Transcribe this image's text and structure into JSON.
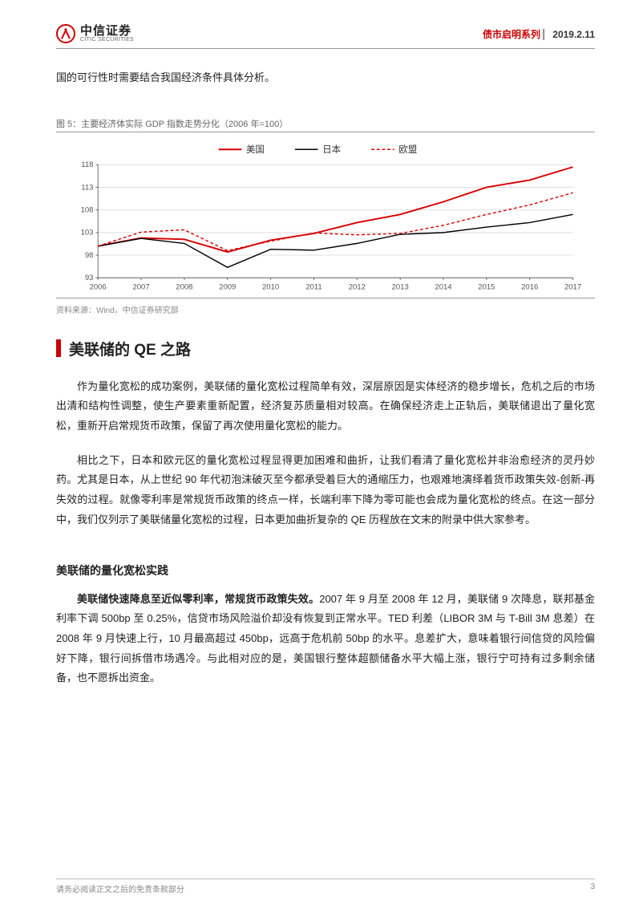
{
  "header": {
    "logo_cn": "中信证券",
    "logo_en": "CITIC SECURITIES",
    "series": "债市启明系列",
    "date": "2019.2.11"
  },
  "intro_line": "国的可行性时需要结合我国经济条件具体分析。",
  "figure": {
    "caption": "图 5：主要经济体实际 GDP 指数走势分化（2006 年=100）",
    "source": "资料来源：Wind，中信证券研究部",
    "type": "line",
    "background_color": "#ffffff",
    "grid_color": "#dcdcdc",
    "axis_color": "#666666",
    "tick_fontsize": 10,
    "legend_fontsize": 12,
    "xlim": [
      2006,
      2017
    ],
    "ylim": [
      93,
      118
    ],
    "ytick_step": 5,
    "yticks": [
      93,
      98,
      103,
      108,
      113,
      118
    ],
    "categories": [
      "2006",
      "2007",
      "2008",
      "2009",
      "2010",
      "2011",
      "2012",
      "2013",
      "2014",
      "2015",
      "2016",
      "2017"
    ],
    "legend": {
      "items": [
        {
          "label": "美国",
          "color": "#d80000",
          "dash": "none",
          "width": 2
        },
        {
          "label": "日本",
          "color": "#000000",
          "dash": "none",
          "width": 1.5
        },
        {
          "label": "欧盟",
          "color": "#d80000",
          "dash": "4,3",
          "width": 1.5
        }
      ],
      "position": "top"
    },
    "series": [
      {
        "name": "美国",
        "color": "#d80000",
        "dash": "none",
        "width": 2,
        "values": [
          100.0,
          101.8,
          101.5,
          98.7,
          101.3,
          102.8,
          105.2,
          107.0,
          109.8,
          113.0,
          114.6,
          117.5
        ]
      },
      {
        "name": "日本",
        "color": "#000000",
        "dash": "none",
        "width": 1.5,
        "values": [
          100.0,
          101.7,
          100.6,
          95.3,
          99.3,
          99.1,
          100.6,
          102.6,
          103.0,
          104.2,
          105.2,
          107.0
        ]
      },
      {
        "name": "欧盟",
        "color": "#d80000",
        "dash": "4,3",
        "width": 1.5,
        "values": [
          100.0,
          103.1,
          103.6,
          99.0,
          101.1,
          102.9,
          102.5,
          102.8,
          104.6,
          107.0,
          109.1,
          111.8
        ]
      }
    ]
  },
  "section_title": "美联储的 QE 之路",
  "para1": "作为量化宽松的成功案例，美联储的量化宽松过程简单有效，深层原因是实体经济的稳步增长，危机之后的市场出清和结构性调整，使生产要素重新配置，经济复苏质量相对较高。在确保经济走上正轨后，美联储退出了量化宽松，重新开启常规货币政策，保留了再次使用量化宽松的能力。",
  "para2": "相比之下，日本和欧元区的量化宽松过程显得更加困难和曲折，让我们看清了量化宽松并非治愈经济的灵丹妙药。尤其是日本，从上世纪 90 年代初泡沫破灭至今都承受着巨大的通缩压力，也艰难地演绎着货币政策失效-创新-再失效的过程。就像零利率是常规货币政策的终点一样，长端利率下降为零可能也会成为量化宽松的终点。在这一部分中，我们仅列示了美联储量化宽松的过程，日本更加曲折复杂的 QE 历程放在文末的附录中供大家参考。",
  "sub_heading": "美联储的量化宽松实践",
  "para3_lead": "美联储快速降息至近似零利率，常规货币政策失效。",
  "para3_rest": "2007 年 9 月至 2008 年 12 月，美联储 9 次降息，联邦基金利率下调 500bp 至 0.25%，信贷市场风险溢价却没有恢复到正常水平。TED 利差（LIBOR 3M 与 T-Bill 3M 息差）在 2008 年 9 月快速上行，10 月最高超过 450bp，远高于危机前 50bp 的水平。息差扩大，意味着银行间信贷的风险偏好下降，银行间拆借市场遇冷。与此相对应的是，美国银行整体超额储备水平大幅上涨，银行宁可持有过多剩余储备，也不愿拆出资金。",
  "footer": {
    "disclaimer": "请务必阅读正文之后的免责条款部分",
    "page_no": "3"
  }
}
